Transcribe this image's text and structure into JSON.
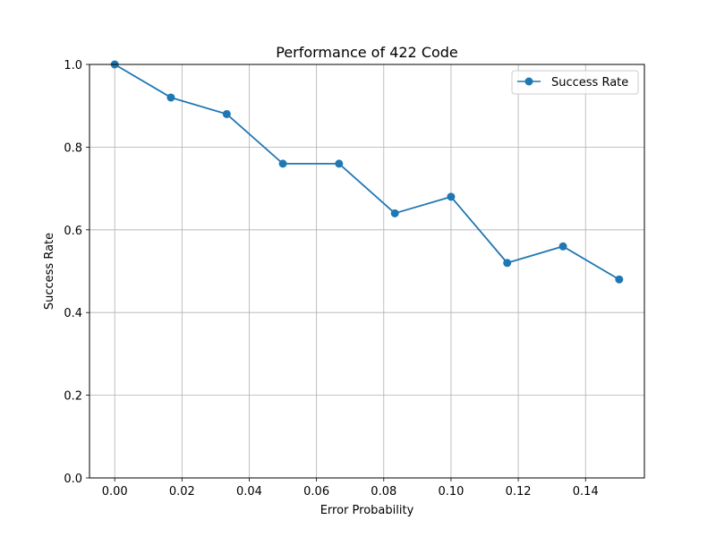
{
  "chart_data": {
    "type": "line",
    "title": "Performance of 422 Code",
    "xlabel": "Error Probability",
    "ylabel": "Success Rate",
    "xlim": [
      -0.0075,
      0.1575
    ],
    "ylim": [
      0,
      1.0
    ],
    "x_ticks": [
      0.0,
      0.02,
      0.04,
      0.06,
      0.08,
      0.1,
      0.12,
      0.14
    ],
    "x_tick_labels": [
      "0.00",
      "0.02",
      "0.04",
      "0.06",
      "0.08",
      "0.10",
      "0.12",
      "0.14"
    ],
    "y_ticks": [
      0.0,
      0.2,
      0.4,
      0.6,
      0.8,
      1.0
    ],
    "y_tick_labels": [
      "0.0",
      "0.2",
      "0.4",
      "0.6",
      "0.8",
      "1.0"
    ],
    "grid": true,
    "legend_position": "top-right",
    "series": [
      {
        "name": "Success Rate",
        "color": "#1f77b4",
        "marker": "circle",
        "x": [
          0.0,
          0.0167,
          0.0333,
          0.05,
          0.0667,
          0.0833,
          0.1,
          0.1167,
          0.1333,
          0.15
        ],
        "y": [
          1.0,
          0.92,
          0.88,
          0.76,
          0.76,
          0.64,
          0.68,
          0.52,
          0.56,
          0.48
        ]
      }
    ]
  }
}
